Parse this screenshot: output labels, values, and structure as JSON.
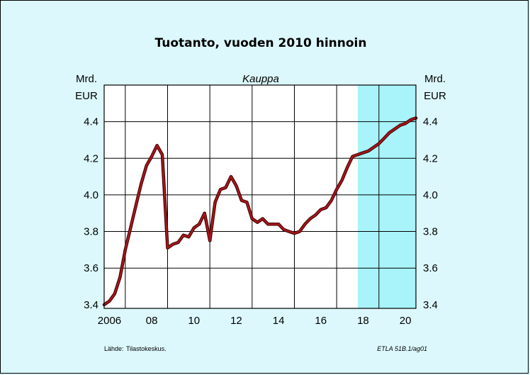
{
  "colors": {
    "background": "#dcf8fc",
    "plot_area": "#ffffff",
    "forecast_band": "#a8f4fa",
    "line": "#a8161c",
    "line_shadow": "#3a0000",
    "grid": "#000000"
  },
  "chart_data": {
    "type": "line",
    "title": "Tuotanto, vuoden 2010 hinnoin",
    "subtitle": "Kauppa",
    "ylabel_left": [
      "Mrd.",
      "EUR"
    ],
    "ylabel_right": [
      "Mrd.",
      "EUR"
    ],
    "xlim": [
      2005.75,
      2020.5
    ],
    "ylim": [
      3.38,
      4.6
    ],
    "y_ticks": [
      3.4,
      3.6,
      3.8,
      4.0,
      4.2,
      4.4
    ],
    "y_tick_labels": [
      "3.4",
      "3.6",
      "3.8",
      "4.0",
      "4.2",
      "4.4"
    ],
    "x_ticks": [
      2006,
      2008,
      2010,
      2012,
      2014,
      2016,
      2018,
      2020
    ],
    "x_tick_labels": [
      "2006",
      "08",
      "10",
      "12",
      "14",
      "16",
      "18",
      "20"
    ],
    "vertical_gridlines": [
      2006.75,
      2008.75,
      2010.75,
      2012.75,
      2014.75,
      2016.75,
      2018.75
    ],
    "forecast_band": [
      2017.75,
      2020.5
    ],
    "grid": true,
    "legend": "none",
    "series": [
      {
        "x": [
          2005.75,
          2006.0,
          2006.25,
          2006.5,
          2006.75,
          2007.0,
          2007.25,
          2007.5,
          2007.75,
          2008.0,
          2008.25,
          2008.5,
          2008.75,
          2009.0,
          2009.25,
          2009.5,
          2009.75,
          2010.0,
          2010.25,
          2010.5,
          2010.75,
          2011.0,
          2011.25,
          2011.5,
          2011.75,
          2012.0,
          2012.25,
          2012.5,
          2012.75,
          2013.0,
          2013.25,
          2013.5,
          2013.75,
          2014.0,
          2014.25,
          2014.5,
          2014.75,
          2015.0,
          2015.25,
          2015.5,
          2015.75,
          2016.0,
          2016.25,
          2016.5,
          2016.75,
          2017.0,
          2017.25,
          2017.5,
          2017.75,
          2018.0,
          2018.25,
          2018.5,
          2018.75,
          2019.0,
          2019.25,
          2019.5,
          2019.75,
          2020.0,
          2020.25,
          2020.5
        ],
        "y": [
          3.4,
          3.42,
          3.46,
          3.55,
          3.7,
          3.82,
          3.94,
          4.06,
          4.16,
          4.21,
          4.27,
          4.22,
          3.71,
          3.73,
          3.74,
          3.78,
          3.77,
          3.82,
          3.84,
          3.9,
          3.75,
          3.96,
          4.03,
          4.04,
          4.1,
          4.05,
          3.97,
          3.96,
          3.87,
          3.85,
          3.87,
          3.84,
          3.84,
          3.84,
          3.81,
          3.8,
          3.79,
          3.8,
          3.84,
          3.87,
          3.89,
          3.92,
          3.93,
          3.97,
          4.03,
          4.08,
          4.15,
          4.21,
          4.22,
          4.23,
          4.24,
          4.26,
          4.28,
          4.31,
          4.34,
          4.36,
          4.38,
          4.39,
          4.41,
          4.42
        ]
      }
    ]
  },
  "footer": {
    "source_label": "Lähde:",
    "source_value": "Tilastokeskus.",
    "code": "ETLA 51B.1/ag01"
  }
}
